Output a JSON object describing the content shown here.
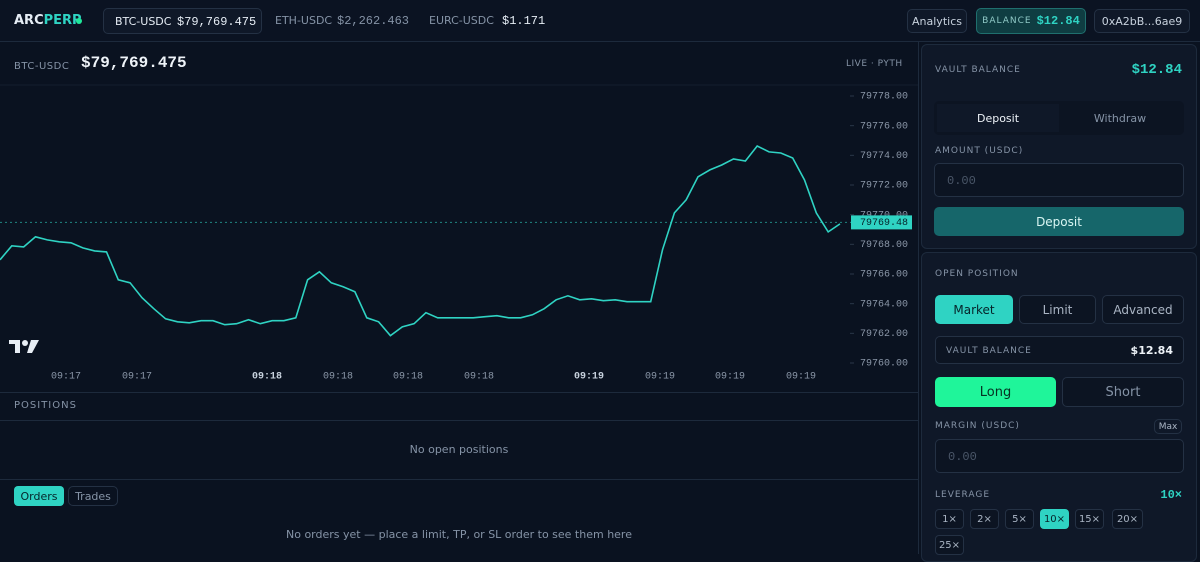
{
  "header": {
    "logo": {
      "prefix": "ARC",
      "suffix": "PERP"
    },
    "markets": [
      {
        "symbol": "BTC-USDC",
        "price": "$79,769.475"
      },
      {
        "symbol": "ETH-USDC",
        "price": "$2,262.463"
      },
      {
        "symbol": "EURC-USDC",
        "price": "$1.171"
      }
    ],
    "analytics": "Analytics",
    "balance": {
      "label": "BALANCE",
      "value": "$12.84"
    },
    "wallet": "0xA2bB...6ae9"
  },
  "chart_header": {
    "symbol": "BTC-USDC",
    "price": "$79,769.475",
    "source": "LIVE · PYTH"
  },
  "chart_data": {
    "type": "line",
    "series": [
      {
        "color": "#2fd3c3",
        "values": [
          79766.96,
          79767.9,
          79767.83,
          79768.51,
          79768.3,
          79768.17,
          79768.1,
          79767.76,
          79767.56,
          79767.49,
          79765.61,
          79765.41,
          79764.4,
          79763.66,
          79762.98,
          79762.78,
          79762.71,
          79762.85,
          79762.85,
          79762.58,
          79762.65,
          79762.92,
          79762.65,
          79762.85,
          79762.85,
          79763.05,
          79765.61,
          79766.15,
          79765.41,
          79765.14,
          79764.8,
          79763.05,
          79762.78,
          79761.84,
          79762.44,
          79762.65,
          79763.39,
          79763.05,
          79763.05,
          79763.05,
          79763.05,
          79763.12,
          79763.19,
          79763.05,
          79763.05,
          79763.25,
          79763.66,
          79764.26,
          79764.53,
          79764.26,
          79764.33,
          79764.2,
          79764.26,
          79764.13,
          79764.13,
          79764.13,
          79767.63,
          79770.12,
          79771.0,
          79772.55,
          79773.02,
          79773.35,
          79773.76,
          79773.62,
          79774.63,
          79774.23,
          79774.16,
          79773.82,
          79772.34,
          79770.12,
          79768.84,
          79769.38
        ]
      }
    ],
    "ylim": [
      79760,
      79778
    ],
    "yticks": [
      {
        "value": 79760,
        "label": "79760.00"
      },
      {
        "value": 79762,
        "label": "79762.00"
      },
      {
        "value": 79764,
        "label": "79764.00"
      },
      {
        "value": 79766,
        "label": "79766.00"
      },
      {
        "value": 79768,
        "label": "79768.00"
      },
      {
        "value": 79770,
        "label": "79770.00"
      },
      {
        "value": 79772,
        "label": "79772.00"
      },
      {
        "value": 79774,
        "label": "79774.00"
      },
      {
        "value": 79776,
        "label": "79776.00"
      },
      {
        "value": 79778,
        "label": "79778.00"
      }
    ],
    "x_tick_labels": [
      "09:17",
      "09:17",
      "09:18",
      "09:18",
      "09:18",
      "09:18",
      "09:19",
      "09:19",
      "09:19",
      "09:19"
    ],
    "current_price": {
      "value": 79769.48,
      "label": "79769.48"
    }
  },
  "positions": {
    "title": "POSITIONS",
    "empty": "No open positions"
  },
  "orders": {
    "tabs": [
      "Orders",
      "Trades"
    ],
    "empty": "No orders yet — place a limit, TP, or SL order to see them here"
  },
  "vault": {
    "title": "VAULT BALANCE",
    "value": "$12.84",
    "tabs": [
      "Deposit",
      "Withdraw"
    ],
    "amount_label": "AMOUNT (USDC)",
    "placeholder": "0.00",
    "button": "Deposit"
  },
  "open_position": {
    "title": "OPEN POSITION",
    "order_types": [
      "Market",
      "Limit",
      "Advanced"
    ],
    "vault_balance": {
      "label": "VAULT BALANCE",
      "value": "$12.84"
    },
    "sides": [
      "Long",
      "Short"
    ],
    "margin_label": "MARGIN (USDC)",
    "max": "Max",
    "placeholder": "0.00",
    "leverage_label": "LEVERAGE",
    "leverage_value": "10×",
    "leverage_options": [
      "1×",
      "2×",
      "5×",
      "10×",
      "15×",
      "20×",
      "25×"
    ]
  }
}
